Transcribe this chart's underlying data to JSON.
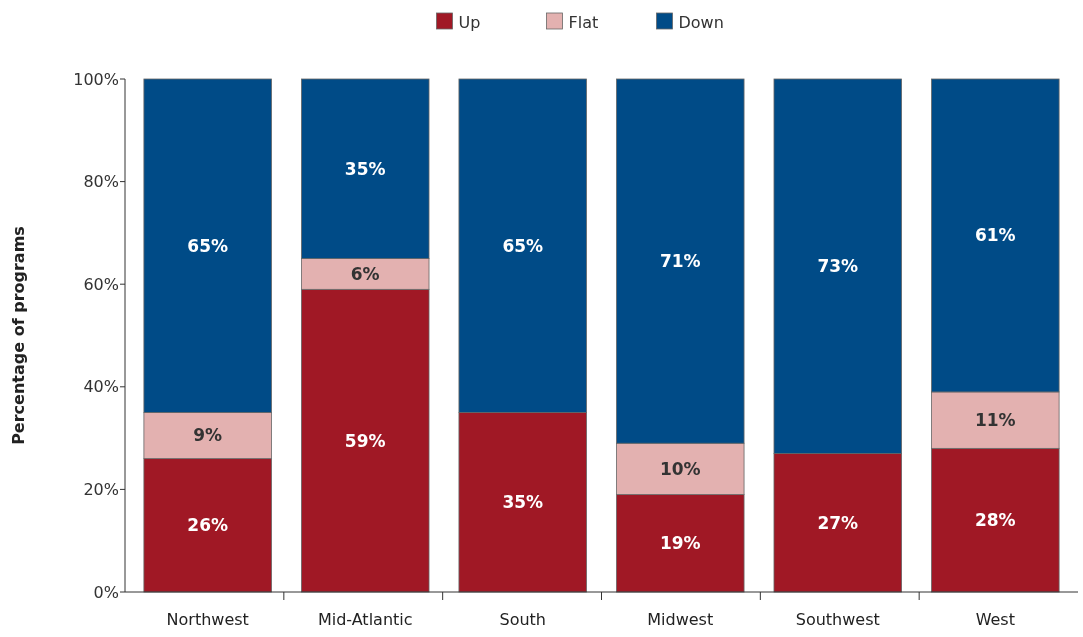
{
  "chart_data": {
    "type": "bar",
    "stacked": true,
    "ylabel": "Percentage of programs",
    "categories": [
      "Northwest",
      "Mid-Atlantic",
      "South",
      "Midwest",
      "Southwest",
      "West"
    ],
    "series": [
      {
        "name": "Up",
        "color": "#a01825",
        "values": [
          26,
          59,
          35,
          19,
          27,
          28
        ],
        "value_labels": [
          "26%",
          "59%",
          "35%",
          "19%",
          "27%",
          "28%"
        ]
      },
      {
        "name": "Flat",
        "color": "#e3b1b0",
        "values": [
          9,
          6,
          null,
          10,
          null,
          11
        ],
        "value_labels": [
          "9%",
          "6%",
          null,
          "10%",
          null,
          "11%"
        ]
      },
      {
        "name": "Down",
        "color": "#004b87",
        "values": [
          65,
          35,
          65,
          71,
          73,
          61
        ],
        "value_labels": [
          "65%",
          "35%",
          "65%",
          "71%",
          "73%",
          "61%"
        ]
      }
    ],
    "ylim": [
      0,
      100
    ],
    "yticks": [
      {
        "value": 0,
        "label": "0%"
      },
      {
        "value": 20,
        "label": "20%"
      },
      {
        "value": 40,
        "label": "40%"
      },
      {
        "value": 60,
        "label": "60%"
      },
      {
        "value": 80,
        "label": "80%"
      },
      {
        "value": 100,
        "label": "100%"
      }
    ],
    "legend": "top",
    "grid": false
  }
}
